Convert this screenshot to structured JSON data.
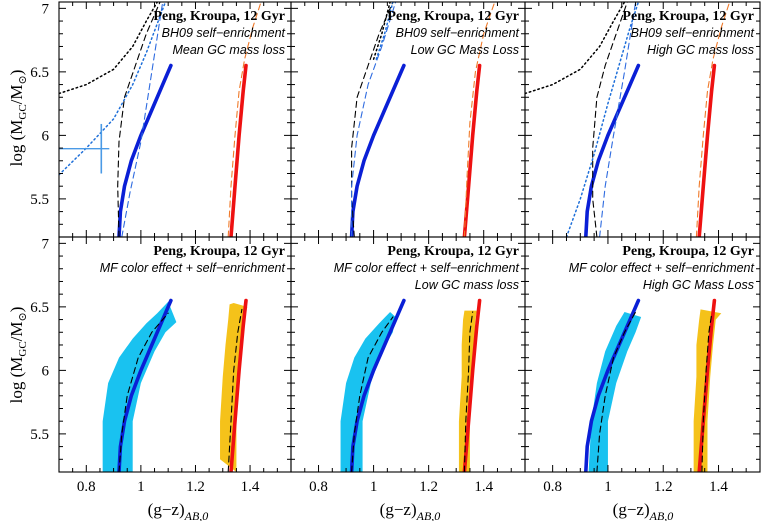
{
  "figure": {
    "xlabel": "(g−z)",
    "xlabel_sub": "AB,0",
    "ylabel": "log (M",
    "ylabel_sub": "GC",
    "ylabel_mid": "/M",
    "ylabel_sun": "⊙",
    "ylabel_end": ")"
  },
  "colors": {
    "blue": "#0a1fd6",
    "red": "#ee1111",
    "cyan": "#19c2f0",
    "gold": "#f5c21a",
    "dotted_blue": "#1e6fd9",
    "dashed_blue": "#2e6be0",
    "dashed_orange": "#f07a2a",
    "errorbar": "#4a9ae6"
  },
  "chart_data": [
    {
      "type": "line",
      "panel": "top-left",
      "xlim": [
        0.7,
        1.55
      ],
      "ylim": [
        5.2,
        7.05
      ],
      "xticks": [
        "0.8",
        "1",
        "1.2",
        "1.4"
      ],
      "yticks": [
        "5.5",
        "6",
        "6.5",
        "7"
      ],
      "annotations": [
        "Peng, Kroupa, 12 Gyr",
        "BH09 self−enrichment",
        "Mean GC mass loss"
      ],
      "errorbar": {
        "x": 0.855,
        "y": [
          5.7,
          6.09
        ]
      },
      "series": [
        {
          "style": "blue-solid",
          "x": [
            0.92,
            0.925,
            0.94,
            0.965,
            1.0,
            1.04,
            1.08,
            1.11
          ],
          "y": [
            5.2,
            5.4,
            5.6,
            5.8,
            6.0,
            6.2,
            6.4,
            6.55
          ]
        },
        {
          "style": "red-solid",
          "x": [
            1.33,
            1.345,
            1.36,
            1.375,
            1.385
          ],
          "y": [
            5.2,
            5.6,
            6.0,
            6.35,
            6.55
          ]
        },
        {
          "style": "black-dashed",
          "x": [
            0.92,
            0.915,
            0.92,
            0.94,
            0.98,
            1.02,
            1.07
          ],
          "y": [
            5.2,
            5.6,
            5.95,
            6.3,
            6.55,
            6.8,
            7.05
          ]
        },
        {
          "style": "black-dotted",
          "x": [
            0.7,
            0.8,
            0.9,
            0.97,
            1.02,
            1.06
          ],
          "y": [
            6.33,
            6.4,
            6.52,
            6.7,
            6.9,
            7.05
          ]
        },
        {
          "style": "blue-dotted",
          "x": [
            0.7,
            0.8,
            0.9,
            0.97,
            1.02,
            1.06,
            1.09
          ],
          "y": [
            5.69,
            5.9,
            6.13,
            6.4,
            6.65,
            6.88,
            7.05
          ]
        },
        {
          "style": "blue-dashed",
          "x": [
            0.93,
            0.96,
            1.0,
            1.04,
            1.08
          ],
          "y": [
            5.2,
            5.55,
            5.95,
            6.5,
            7.05
          ]
        },
        {
          "style": "orange-dashed",
          "x": [
            1.32,
            1.33,
            1.345,
            1.36,
            1.38,
            1.41,
            1.44
          ],
          "y": [
            5.2,
            5.6,
            6.0,
            6.35,
            6.6,
            6.85,
            7.05
          ]
        }
      ]
    },
    {
      "type": "line",
      "panel": "top-middle",
      "xlim": [
        0.7,
        1.55
      ],
      "ylim": [
        5.2,
        7.05
      ],
      "xticks": [
        "0.8",
        "1",
        "1.2",
        "1.4"
      ],
      "yticks": [
        "5.5",
        "6",
        "6.5",
        "7"
      ],
      "annotations": [
        "Peng, Kroupa, 12 Gyr",
        "BH09 self−enrichment",
        "Low GC Mass Loss"
      ],
      "series": [
        {
          "style": "blue-solid",
          "x": [
            0.92,
            0.925,
            0.94,
            0.965,
            1.0,
            1.04,
            1.08,
            1.11
          ],
          "y": [
            5.2,
            5.4,
            5.6,
            5.8,
            6.0,
            6.2,
            6.4,
            6.55
          ]
        },
        {
          "style": "red-solid",
          "x": [
            1.33,
            1.345,
            1.36,
            1.375,
            1.385
          ],
          "y": [
            5.2,
            5.6,
            6.0,
            6.35,
            6.55
          ]
        },
        {
          "style": "black-dashed",
          "x": [
            0.93,
            0.92,
            0.92,
            0.94,
            0.98,
            1.02,
            1.07
          ],
          "y": [
            5.2,
            5.5,
            5.9,
            6.3,
            6.55,
            6.8,
            7.05
          ]
        },
        {
          "style": "black-dotted",
          "x": [
            1.0,
            1.03,
            1.06
          ],
          "y": [
            6.6,
            6.8,
            7.05
          ]
        },
        {
          "style": "blue-dotted",
          "x": [
            1.01,
            1.04,
            1.07
          ],
          "y": [
            6.6,
            6.8,
            7.05
          ]
        },
        {
          "style": "blue-dashed",
          "x": [
            0.92,
            0.92,
            0.94,
            0.98,
            1.03,
            1.08
          ],
          "y": [
            5.2,
            5.6,
            6.0,
            6.4,
            6.7,
            7.05
          ]
        },
        {
          "style": "orange-dashed",
          "x": [
            1.33,
            1.34,
            1.35,
            1.37,
            1.4,
            1.44
          ],
          "y": [
            5.2,
            5.7,
            6.1,
            6.5,
            6.8,
            7.05
          ]
        }
      ]
    },
    {
      "type": "line",
      "panel": "top-right",
      "xlim": [
        0.7,
        1.55
      ],
      "ylim": [
        5.2,
        7.05
      ],
      "xticks": [
        "0.8",
        "1",
        "1.2",
        "1.4"
      ],
      "yticks": [
        "5.5",
        "6",
        "6.5",
        "7"
      ],
      "annotations": [
        "Peng, Kroupa, 12 Gyr",
        "BH09 self−enrichment",
        "High GC mass loss"
      ],
      "series": [
        {
          "style": "blue-solid",
          "x": [
            0.92,
            0.925,
            0.94,
            0.965,
            1.0,
            1.04,
            1.08,
            1.11
          ],
          "y": [
            5.2,
            5.4,
            5.6,
            5.8,
            6.0,
            6.2,
            6.4,
            6.55
          ]
        },
        {
          "style": "red-solid",
          "x": [
            1.33,
            1.345,
            1.36,
            1.375,
            1.385
          ],
          "y": [
            5.2,
            5.6,
            6.0,
            6.35,
            6.55
          ]
        },
        {
          "style": "black-dashed",
          "x": [
            0.96,
            0.945,
            0.945,
            0.96,
            0.99,
            1.03,
            1.07
          ],
          "y": [
            5.2,
            5.5,
            5.9,
            6.3,
            6.55,
            6.8,
            7.05
          ]
        },
        {
          "style": "black-dotted",
          "x": [
            0.7,
            0.8,
            0.9,
            0.97,
            1.02,
            1.06
          ],
          "y": [
            6.33,
            6.4,
            6.52,
            6.7,
            6.9,
            7.05
          ]
        },
        {
          "style": "blue-dotted",
          "x": [
            0.85,
            0.9,
            0.95,
            1.0,
            1.04,
            1.08,
            1.11
          ],
          "y": [
            5.2,
            5.5,
            5.85,
            6.25,
            6.55,
            6.85,
            7.05
          ]
        },
        {
          "style": "blue-dashed",
          "x": [
            0.97,
            0.99,
            1.02,
            1.06,
            1.1
          ],
          "y": [
            5.2,
            5.6,
            6.0,
            6.5,
            7.05
          ]
        },
        {
          "style": "orange-dashed",
          "x": [
            1.32,
            1.33,
            1.345,
            1.36,
            1.38,
            1.41,
            1.44
          ],
          "y": [
            5.2,
            5.6,
            6.0,
            6.35,
            6.6,
            6.85,
            7.05
          ]
        }
      ]
    },
    {
      "type": "area",
      "panel": "bottom-left",
      "xlim": [
        0.7,
        1.55
      ],
      "ylim": [
        5.2,
        7.05
      ],
      "xticks": [
        "0.8",
        "1",
        "1.2",
        "1.4"
      ],
      "yticks": [
        "5.5",
        "6",
        "6.5",
        "7"
      ],
      "annotations": [
        "Peng, Kroupa, 12 Gyr",
        "MF color effect + self−enrichment"
      ],
      "bands": [
        {
          "style": "cyan-band",
          "lower": {
            "x": [
              0.86,
              0.86,
              0.88,
              0.92,
              0.97,
              1.02,
              1.06,
              1.1
            ],
            "y": [
              5.2,
              5.6,
              5.9,
              6.1,
              6.25,
              6.37,
              6.45,
              6.54
            ]
          },
          "upper": {
            "x": [
              0.97,
              0.97,
              1.0,
              1.05,
              1.09,
              1.13
            ],
            "y": [
              5.2,
              5.6,
              5.9,
              6.15,
              6.3,
              6.38
            ]
          }
        },
        {
          "style": "gold-band",
          "lower": {
            "x": [
              1.29,
              1.29,
              1.3,
              1.31,
              1.32,
              1.325,
              1.34
            ],
            "y": [
              5.3,
              5.6,
              5.95,
              6.2,
              6.4,
              6.52,
              6.53
            ]
          },
          "upper": {
            "x": [
              1.35,
              1.35,
              1.36,
              1.37,
              1.38,
              1.39
            ],
            "y": [
              5.2,
              5.6,
              5.95,
              6.2,
              6.4,
              6.5
            ]
          }
        }
      ],
      "series": [
        {
          "style": "blue-solid",
          "x": [
            0.92,
            0.925,
            0.94,
            0.965,
            1.0,
            1.04,
            1.08,
            1.11
          ],
          "y": [
            5.2,
            5.4,
            5.6,
            5.8,
            6.0,
            6.2,
            6.4,
            6.55
          ]
        },
        {
          "style": "red-solid",
          "x": [
            1.33,
            1.345,
            1.36,
            1.375,
            1.385
          ],
          "y": [
            5.2,
            5.6,
            6.0,
            6.35,
            6.55
          ]
        },
        {
          "style": "black-dashed",
          "x": [
            0.92,
            0.93,
            0.95,
            0.99,
            1.04,
            1.1
          ],
          "y": [
            5.2,
            5.5,
            5.8,
            6.1,
            6.3,
            6.45
          ]
        },
        {
          "style": "black-dashed",
          "x": [
            1.32,
            1.33,
            1.34,
            1.355,
            1.37
          ],
          "y": [
            5.2,
            5.6,
            6.0,
            6.3,
            6.48
          ]
        }
      ]
    },
    {
      "type": "area",
      "panel": "bottom-middle",
      "xlim": [
        0.7,
        1.55
      ],
      "ylim": [
        5.2,
        7.05
      ],
      "xticks": [
        "0.8",
        "1",
        "1.2",
        "1.4"
      ],
      "yticks": [
        "5.5",
        "6",
        "6.5",
        "7"
      ],
      "annotations": [
        "Peng, Kroupa, 12 Gyr",
        "MF color effect + self−enrichment",
        "Low GC mass loss"
      ],
      "bands": [
        {
          "style": "cyan-band",
          "lower": {
            "x": [
              0.88,
              0.88,
              0.9,
              0.93,
              0.97,
              1.02,
              1.06
            ],
            "y": [
              5.2,
              5.6,
              5.9,
              6.1,
              6.25,
              6.37,
              6.46
            ]
          },
          "upper": {
            "x": [
              0.96,
              0.96,
              0.99,
              1.03,
              1.07,
              1.08
            ],
            "y": [
              5.2,
              5.6,
              5.9,
              6.15,
              6.3,
              6.42
            ]
          }
        },
        {
          "style": "gold-band",
          "lower": {
            "x": [
              1.31,
              1.31,
              1.32,
              1.32,
              1.325,
              1.33
            ],
            "y": [
              5.2,
              5.6,
              5.95,
              6.2,
              6.4,
              6.47
            ]
          },
          "upper": {
            "x": [
              1.35,
              1.35,
              1.36,
              1.365,
              1.37,
              1.375
            ],
            "y": [
              5.2,
              5.6,
              5.95,
              6.2,
              6.4,
              6.47
            ]
          }
        }
      ],
      "series": [
        {
          "style": "blue-solid",
          "x": [
            0.92,
            0.925,
            0.94,
            0.965,
            1.0,
            1.04,
            1.08,
            1.11
          ],
          "y": [
            5.2,
            5.4,
            5.6,
            5.8,
            6.0,
            6.2,
            6.4,
            6.55
          ]
        },
        {
          "style": "red-solid",
          "x": [
            1.33,
            1.345,
            1.36,
            1.375,
            1.385
          ],
          "y": [
            5.2,
            5.6,
            6.0,
            6.35,
            6.55
          ]
        },
        {
          "style": "black-dashed",
          "x": [
            0.92,
            0.93,
            0.95,
            0.98,
            1.03,
            1.07
          ],
          "y": [
            5.2,
            5.5,
            5.8,
            6.1,
            6.3,
            6.42
          ]
        },
        {
          "style": "black-dashed",
          "x": [
            1.33,
            1.335,
            1.345,
            1.35,
            1.36
          ],
          "y": [
            5.2,
            5.6,
            6.0,
            6.3,
            6.46
          ]
        }
      ]
    },
    {
      "type": "area",
      "panel": "bottom-right",
      "xlim": [
        0.7,
        1.55
      ],
      "ylim": [
        5.2,
        7.05
      ],
      "xticks": [
        "0.8",
        "1",
        "1.2",
        "1.4"
      ],
      "yticks": [
        "5.5",
        "6",
        "6.5",
        "7"
      ],
      "annotations": [
        "Peng, Kroupa, 12 Gyr",
        "MF color effect + self−enrichment",
        "High GC Mass Loss"
      ],
      "bands": [
        {
          "style": "cyan-band",
          "lower": {
            "x": [
              0.93,
              0.94,
              0.96,
              0.99,
              1.03,
              1.06
            ],
            "y": [
              5.2,
              5.6,
              5.9,
              6.15,
              6.35,
              6.46
            ]
          },
          "upper": {
            "x": [
              1.0,
              1.0,
              1.03,
              1.07,
              1.1,
              1.12
            ],
            "y": [
              5.2,
              5.6,
              5.9,
              6.15,
              6.3,
              6.42
            ]
          }
        },
        {
          "style": "gold-band",
          "lower": {
            "x": [
              1.31,
              1.31,
              1.32,
              1.32,
              1.33,
              1.335
            ],
            "y": [
              5.2,
              5.6,
              5.95,
              6.2,
              6.4,
              6.48
            ]
          },
          "upper": {
            "x": [
              1.36,
              1.36,
              1.37,
              1.38,
              1.39,
              1.41
            ],
            "y": [
              5.2,
              5.6,
              5.95,
              6.2,
              6.4,
              6.45
            ]
          }
        }
      ],
      "series": [
        {
          "style": "blue-solid",
          "x": [
            0.92,
            0.925,
            0.94,
            0.965,
            1.0,
            1.04,
            1.08,
            1.11
          ],
          "y": [
            5.2,
            5.4,
            5.6,
            5.8,
            6.0,
            6.2,
            6.4,
            6.55
          ]
        },
        {
          "style": "red-solid",
          "x": [
            1.33,
            1.345,
            1.36,
            1.375,
            1.385
          ],
          "y": [
            5.2,
            5.6,
            6.0,
            6.35,
            6.55
          ]
        },
        {
          "style": "black-dashed",
          "x": [
            0.96,
            0.97,
            0.99,
            1.02,
            1.06,
            1.1
          ],
          "y": [
            5.2,
            5.5,
            5.8,
            6.1,
            6.3,
            6.46
          ]
        },
        {
          "style": "black-dashed",
          "x": [
            1.34,
            1.345,
            1.355,
            1.365,
            1.375
          ],
          "y": [
            5.2,
            5.6,
            6.0,
            6.3,
            6.44
          ]
        }
      ]
    }
  ]
}
